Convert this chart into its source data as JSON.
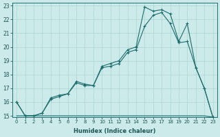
{
  "xlabel": "Humidex (Indice chaleur)",
  "bg_color": "#cdeaea",
  "grid_color": "#b0d8d8",
  "line_color": "#1a6b6b",
  "xlim": [
    -0.5,
    23.5
  ],
  "ylim": [
    14.9,
    23.2
  ],
  "yticks": [
    15,
    16,
    17,
    18,
    19,
    20,
    21,
    22,
    23
  ],
  "xticks": [
    0,
    1,
    2,
    3,
    4,
    5,
    6,
    7,
    8,
    9,
    10,
    11,
    12,
    13,
    14,
    15,
    16,
    17,
    18,
    19,
    20,
    21,
    22,
    23
  ],
  "line1_x": [
    0,
    1,
    2,
    3,
    4,
    5,
    6,
    7,
    8,
    9,
    10,
    11,
    12,
    13,
    14,
    15,
    16,
    17,
    18,
    19,
    20,
    21,
    22,
    23
  ],
  "line1_y": [
    16,
    15,
    15,
    15.2,
    16.3,
    16.5,
    16.6,
    17.5,
    17.3,
    17.2,
    18.6,
    18.8,
    19.0,
    19.8,
    20.0,
    22.9,
    22.6,
    22.7,
    22.4,
    20.4,
    21.7,
    18.5,
    17.0,
    14.9
  ],
  "line2_x": [
    0,
    1,
    2,
    3,
    4,
    5,
    6,
    7,
    8,
    9,
    10,
    11,
    12,
    13,
    14,
    15,
    16,
    17,
    18,
    19,
    20,
    21,
    22,
    23
  ],
  "line2_y": [
    16,
    15,
    15,
    15.2,
    16.2,
    16.4,
    16.6,
    17.4,
    17.2,
    17.2,
    18.5,
    18.6,
    18.8,
    19.6,
    19.8,
    21.5,
    22.3,
    22.5,
    21.7,
    20.3,
    20.4,
    18.5,
    17.0,
    14.9
  ],
  "line3_x": [
    0,
    1,
    2,
    3,
    4,
    5,
    6,
    7,
    8,
    9,
    10,
    11,
    12,
    13,
    14,
    15,
    16,
    17,
    18,
    19,
    20,
    21,
    22,
    23
  ],
  "line3_y": [
    15,
    15,
    15,
    15,
    15,
    15,
    15,
    15,
    15,
    15,
    15,
    15,
    15,
    15,
    15,
    15,
    15,
    15,
    15,
    15,
    15,
    15,
    15,
    14.9
  ]
}
